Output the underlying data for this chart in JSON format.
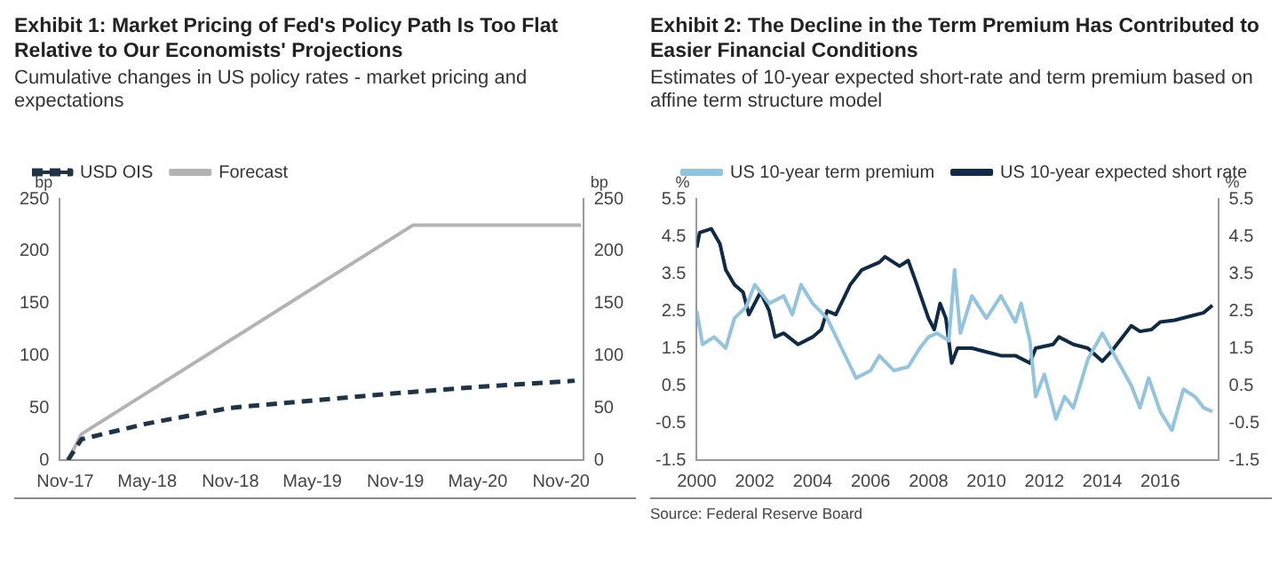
{
  "chart_data": [
    {
      "type": "line",
      "title": "Exhibit 1: Market Pricing of Fed's Policy Path Is Too Flat Relative to Our Economists' Projections",
      "subtitle": "Cumulative changes in US policy rates - market pricing and expectations",
      "ylabel": "bp",
      "y2label": "bp",
      "legend": "top left",
      "marker": "none",
      "grid": false,
      "xlim": [
        "2017-10-20",
        "2020-12-20"
      ],
      "xticks": [
        {
          "value": "2017-11-01",
          "label": "Nov-17"
        },
        {
          "value": "2018-05-01",
          "label": "May-18"
        },
        {
          "value": "2018-11-01",
          "label": "Nov-18"
        },
        {
          "value": "2019-05-01",
          "label": "May-19"
        },
        {
          "value": "2019-11-01",
          "label": "Nov-19"
        },
        {
          "value": "2020-05-01",
          "label": "May-20"
        },
        {
          "value": "2020-11-01",
          "label": "Nov-20"
        }
      ],
      "ylim": [
        0,
        250
      ],
      "yticks": [
        0,
        50,
        100,
        150,
        200,
        250
      ],
      "y2lim": [
        0,
        250
      ],
      "y2ticks": [
        0,
        50,
        100,
        150,
        200,
        250
      ],
      "series": [
        {
          "name": "USD OIS",
          "color": "#1f3447",
          "line_style": "dashed",
          "x": [
            "2017-11-07",
            "2017-12-07",
            "2018-05-01",
            "2018-11-01",
            "2019-05-01",
            "2019-11-01",
            "2020-05-01",
            "2020-12-01"
          ],
          "values": [
            0,
            20,
            35,
            50,
            57,
            64,
            70,
            76
          ]
        },
        {
          "name": "Forecast",
          "color": "#b3b3b3",
          "line_style": "solid",
          "x": [
            "2017-11-07",
            "2017-12-07",
            "2019-12-10",
            "2020-12-15"
          ],
          "values": [
            0,
            25,
            225,
            225
          ]
        }
      ]
    },
    {
      "type": "line",
      "title": "Exhibit 2:  The Decline in the Term Premium Has Contributed to Easier Financial Conditions",
      "subtitle": "Estimates of 10-year expected short-rate and term premium based on affine term structure model",
      "ylabel": "%",
      "y2label": "%",
      "legend": "top right",
      "marker": "none",
      "grid": false,
      "annotations": [
        "Source: Federal Reserve Board"
      ],
      "xlim": [
        2000,
        2018
      ],
      "xticks": [
        2000,
        2002,
        2004,
        2006,
        2008,
        2010,
        2012,
        2014,
        2016
      ],
      "ylim": [
        -1.5,
        5.5
      ],
      "yticks": [
        -1.5,
        -0.5,
        0.5,
        1.5,
        2.5,
        3.5,
        4.5,
        5.5
      ],
      "y2lim": [
        -1.5,
        5.5
      ],
      "y2ticks": [
        -1.5,
        -0.5,
        0.5,
        1.5,
        2.5,
        3.5,
        4.5,
        5.5
      ],
      "series": [
        {
          "name": "US 10-year term premium",
          "color": "#92c3df",
          "line_style": "solid",
          "x": [
            2000,
            2000.2,
            2000.6,
            2001,
            2001.3,
            2001.7,
            2002,
            2002.5,
            2003,
            2003.3,
            2003.6,
            2004,
            2004.5,
            2005,
            2005.5,
            2006,
            2006.3,
            2006.8,
            2007.3,
            2007.7,
            2008,
            2008.3,
            2008.7,
            2008.9,
            2009.1,
            2009.5,
            2010,
            2010.5,
            2011,
            2011.2,
            2011.5,
            2011.7,
            2012,
            2012.4,
            2012.7,
            2013,
            2013.5,
            2014,
            2014.5,
            2015,
            2015.3,
            2015.6,
            2016,
            2016.4,
            2016.8,
            2017.2,
            2017.5,
            2017.8
          ],
          "values": [
            2.5,
            1.6,
            1.8,
            1.5,
            2.3,
            2.6,
            3.2,
            2.7,
            2.9,
            2.4,
            3.2,
            2.7,
            2.3,
            1.5,
            0.7,
            0.9,
            1.3,
            0.9,
            1.0,
            1.5,
            1.8,
            1.9,
            1.7,
            3.6,
            1.9,
            2.9,
            2.3,
            2.9,
            2.2,
            2.7,
            1.7,
            0.2,
            0.8,
            -0.4,
            0.2,
            -0.1,
            1.2,
            1.9,
            1.2,
            0.5,
            -0.1,
            0.7,
            -0.2,
            -0.7,
            0.4,
            0.2,
            -0.1,
            -0.2
          ]
        },
        {
          "name": "US 10-year expected short rate",
          "color": "#0e2a47",
          "line_style": "solid",
          "x": [
            2000,
            2000.1,
            2000.5,
            2000.8,
            2001,
            2001.3,
            2001.6,
            2001.8,
            2002.2,
            2002.5,
            2002.7,
            2003,
            2003.5,
            2004,
            2004.3,
            2004.5,
            2004.8,
            2005.3,
            2005.7,
            2006.3,
            2006.5,
            2007,
            2007.3,
            2007.6,
            2008,
            2008.2,
            2008.4,
            2008.6,
            2008.8,
            2009,
            2009.5,
            2010,
            2010.5,
            2011,
            2011.5,
            2011.7,
            2012.3,
            2012.5,
            2013,
            2013.5,
            2014,
            2014.3,
            2014.7,
            2015,
            2015.3,
            2015.7,
            2016,
            2016.5,
            2017,
            2017.5,
            2017.8
          ],
          "values": [
            4.2,
            4.6,
            4.7,
            4.3,
            3.6,
            3.2,
            3.0,
            2.4,
            3.0,
            2.5,
            1.8,
            1.9,
            1.6,
            1.8,
            2.0,
            2.5,
            2.4,
            3.2,
            3.6,
            3.8,
            3.95,
            3.7,
            3.85,
            3.2,
            2.3,
            2.0,
            2.7,
            2.3,
            1.1,
            1.5,
            1.5,
            1.4,
            1.3,
            1.3,
            1.1,
            1.5,
            1.6,
            1.8,
            1.6,
            1.5,
            1.15,
            1.4,
            1.8,
            2.1,
            1.95,
            2.0,
            2.2,
            2.25,
            2.35,
            2.45,
            2.65
          ]
        }
      ]
    }
  ]
}
